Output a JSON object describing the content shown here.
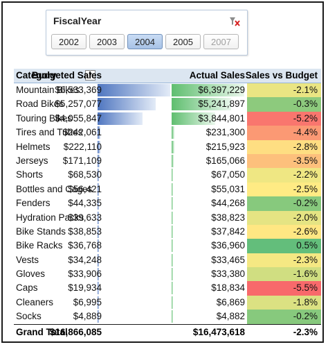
{
  "slicer": {
    "title": "FiscalYear",
    "items": [
      {
        "label": "2002",
        "state": "normal"
      },
      {
        "label": "2003",
        "state": "normal"
      },
      {
        "label": "2004",
        "state": "selected"
      },
      {
        "label": "2005",
        "state": "normal"
      },
      {
        "label": "2007",
        "state": "disabled"
      }
    ],
    "icons": {
      "clear": "clear-filter-icon"
    }
  },
  "table": {
    "headers": {
      "category": "Category",
      "budget": "Budgeted Sales",
      "actual": "Actual Sales",
      "vs": "Sales vs Budget"
    },
    "rows": [
      {
        "category": "Mountain Bikes",
        "budget": "$6,533,369",
        "actual": "$6,397,229",
        "vs": "-2.1%",
        "budget_value": 6533369,
        "actual_value": 6397229,
        "vs_value": -2.1
      },
      {
        "category": "Road Bikes",
        "budget": "$5,257,077",
        "actual": "$5,241,897",
        "vs": "-0.3%",
        "budget_value": 5257077,
        "actual_value": 5241897,
        "vs_value": -0.3
      },
      {
        "category": "Touring Bikes",
        "budget": "$4,055,847",
        "actual": "$3,844,801",
        "vs": "-5.2%",
        "budget_value": 4055847,
        "actual_value": 3844801,
        "vs_value": -5.2
      },
      {
        "category": "Tires and Tubes",
        "budget": "$242,061",
        "actual": "$231,300",
        "vs": "-4.4%",
        "budget_value": 242061,
        "actual_value": 231300,
        "vs_value": -4.4
      },
      {
        "category": "Helmets",
        "budget": "$222,110",
        "actual": "$215,923",
        "vs": "-2.8%",
        "budget_value": 222110,
        "actual_value": 215923,
        "vs_value": -2.8
      },
      {
        "category": "Jerseys",
        "budget": "$171,109",
        "actual": "$165,066",
        "vs": "-3.5%",
        "budget_value": 171109,
        "actual_value": 165066,
        "vs_value": -3.5
      },
      {
        "category": "Shorts",
        "budget": "$68,530",
        "actual": "$67,050",
        "vs": "-2.2%",
        "budget_value": 68530,
        "actual_value": 67050,
        "vs_value": -2.2
      },
      {
        "category": "Bottles and Cages",
        "budget": "$56,421",
        "actual": "$55,031",
        "vs": "-2.5%",
        "budget_value": 56421,
        "actual_value": 55031,
        "vs_value": -2.5
      },
      {
        "category": "Fenders",
        "budget": "$44,335",
        "actual": "$44,268",
        "vs": "-0.2%",
        "budget_value": 44335,
        "actual_value": 44268,
        "vs_value": -0.2
      },
      {
        "category": "Hydration Packs",
        "budget": "$39,633",
        "actual": "$38,823",
        "vs": "-2.0%",
        "budget_value": 39633,
        "actual_value": 38823,
        "vs_value": -2.0
      },
      {
        "category": "Bike Stands",
        "budget": "$38,853",
        "actual": "$37,842",
        "vs": "-2.6%",
        "budget_value": 38853,
        "actual_value": 37842,
        "vs_value": -2.6
      },
      {
        "category": "Bike Racks",
        "budget": "$36,768",
        "actual": "$36,960",
        "vs": "0.5%",
        "budget_value": 36768,
        "actual_value": 36960,
        "vs_value": 0.5
      },
      {
        "category": "Vests",
        "budget": "$34,248",
        "actual": "$33,465",
        "vs": "-2.3%",
        "budget_value": 34248,
        "actual_value": 33465,
        "vs_value": -2.3
      },
      {
        "category": "Gloves",
        "budget": "$33,906",
        "actual": "$33,380",
        "vs": "-1.6%",
        "budget_value": 33906,
        "actual_value": 33380,
        "vs_value": -1.6
      },
      {
        "category": "Caps",
        "budget": "$19,934",
        "actual": "$18,834",
        "vs": "-5.5%",
        "budget_value": 19934,
        "actual_value": 18834,
        "vs_value": -5.5
      },
      {
        "category": "Cleaners",
        "budget": "$6,995",
        "actual": "$6,869",
        "vs": "-1.8%",
        "budget_value": 6995,
        "actual_value": 6869,
        "vs_value": -1.8
      },
      {
        "category": "Socks",
        "budget": "$4,889",
        "actual": "$4,882",
        "vs": "-0.2%",
        "budget_value": 4889,
        "actual_value": 4882,
        "vs_value": -0.2
      }
    ],
    "total": {
      "label": "Grand Total",
      "budget": "$16,866,085",
      "actual": "$16,473,618",
      "vs": "-2.3%"
    },
    "colors": {
      "budget_bar_dark": "#4f76c0",
      "budget_bar_light": "#e3ebf7",
      "actual_bar_dark": "#5fbe6f",
      "actual_bar_light": "#eaf7ec",
      "scale_red": "#f8696b",
      "scale_yellow": "#ffeb84",
      "scale_green": "#63be7b"
    }
  }
}
